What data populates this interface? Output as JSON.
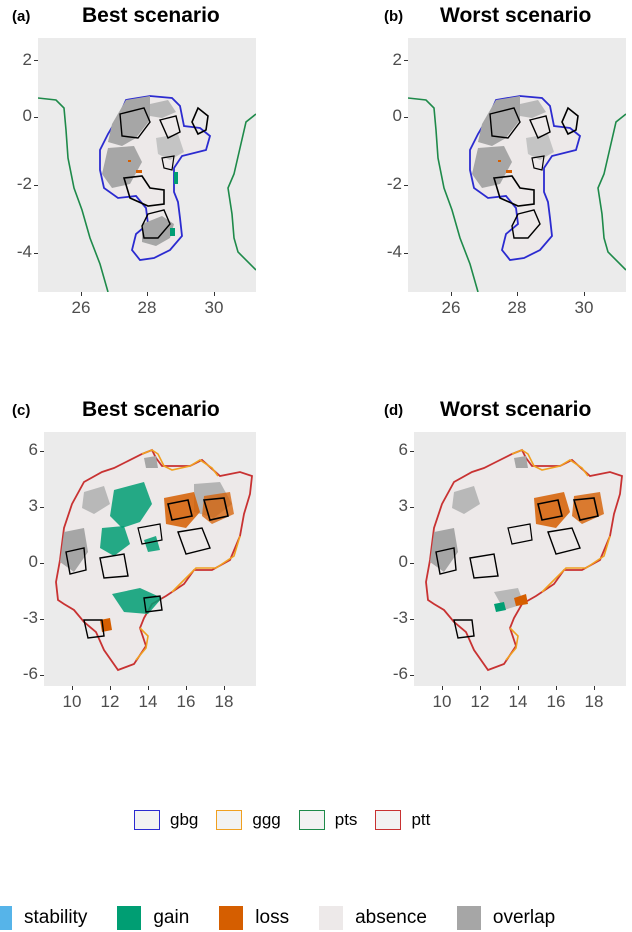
{
  "panels": [
    {
      "label": "(a)",
      "title": "Best scenario",
      "yticks": [
        "2",
        "0",
        "-2",
        "-4"
      ],
      "xticks": [
        "26",
        "28",
        "30"
      ]
    },
    {
      "label": "(b)",
      "title": "Worst scenario",
      "yticks": [
        "2",
        "0",
        "-2",
        "-4"
      ],
      "xticks": [
        "26",
        "28",
        "30"
      ]
    },
    {
      "label": "(c)",
      "title": "Best scenario",
      "yticks": [
        "6",
        "3",
        "0",
        "-3",
        "-6"
      ],
      "xticks": [
        "10",
        "12",
        "14",
        "16",
        "18"
      ]
    },
    {
      "label": "(d)",
      "title": "Worst scenario",
      "yticks": [
        "6",
        "3",
        "0",
        "-3",
        "-6"
      ],
      "xticks": [
        "10",
        "12",
        "14",
        "16",
        "18"
      ]
    }
  ],
  "legend_boundaries": [
    {
      "label": "gbg",
      "color": "#2b2bd0"
    },
    {
      "label": "ggg",
      "color": "#f0a020"
    },
    {
      "label": "pts",
      "color": "#1e8a4a"
    },
    {
      "label": "ptt",
      "color": "#c83232"
    }
  ],
  "legend_change": [
    {
      "label": "stability",
      "color": "#56b4e9"
    },
    {
      "label": "gain",
      "color": "#009e73"
    },
    {
      "label": "loss",
      "color": "#d55e00"
    },
    {
      "label": "absence",
      "color": "#ede9e9"
    },
    {
      "label": "overlap",
      "color": "#a6a6a6"
    }
  ]
}
